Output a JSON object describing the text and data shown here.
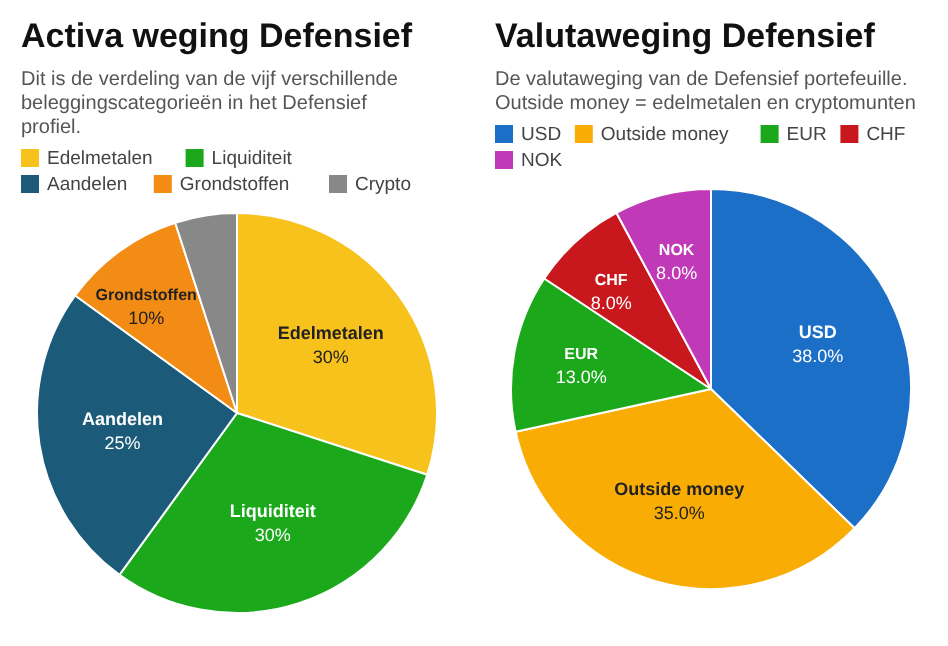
{
  "chart_data": [
    {
      "type": "pie",
      "title": "Activa weging Defensief",
      "subtitle": "Dit is de verdeling van de vijf verschillende beleggingscategorieën in het Defensief profiel.",
      "legend": "top",
      "categories": [
        "Edelmetalen",
        "Liquiditeit",
        "Aandelen",
        "Grondstoffen",
        "Crypto"
      ],
      "values": [
        30,
        30,
        25,
        10,
        5
      ],
      "colors": [
        "#f8c21c",
        "#1ba81b",
        "#1b5a78",
        "#f28c14",
        "#888888"
      ],
      "value_labels": [
        "30%",
        "30%",
        "25%",
        "10%",
        null
      ]
    },
    {
      "type": "pie",
      "title": "Valutaweging Defensief",
      "subtitle": "De valutaweging van de Defensief portefeuille. Outside money = edelmetalen en cryptomunten",
      "legend": "top",
      "categories": [
        "USD",
        "Outside money",
        "EUR",
        "CHF",
        "NOK"
      ],
      "values": [
        38.0,
        35.0,
        13.0,
        8.0,
        8.0
      ],
      "colors": [
        "#1b6fc6",
        "#f9ad04",
        "#1ba81b",
        "#c8181e",
        "#c039b6"
      ],
      "value_labels": [
        "38.0%",
        "35.0%",
        "13.0%",
        "8.0%",
        "8.0%"
      ]
    }
  ]
}
